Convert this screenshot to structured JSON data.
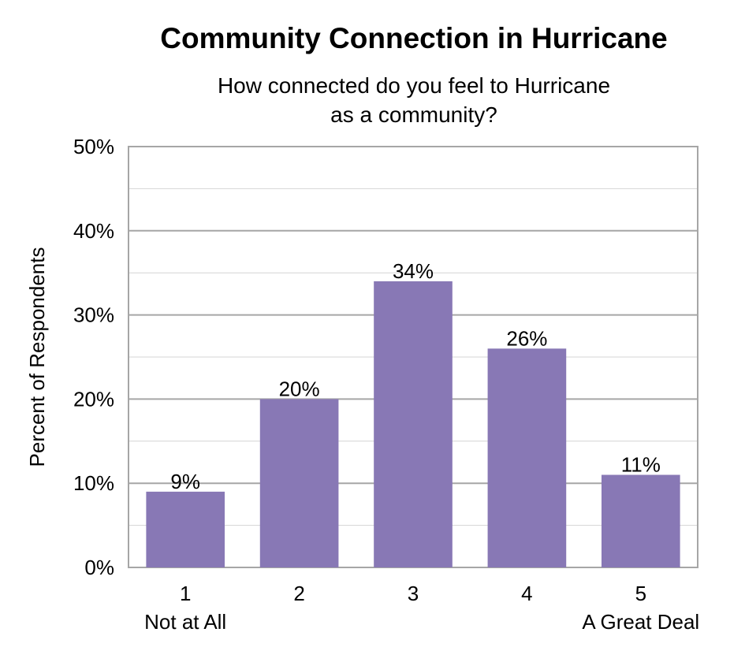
{
  "chart_data": {
    "type": "bar",
    "title": "Community Connection in Hurricane",
    "subtitle_lines": [
      "How connected do you feel to Hurricane",
      "as a community?"
    ],
    "ylabel": "Percent of Respondents",
    "xlabel": "",
    "categories": [
      "1",
      "2",
      "3",
      "4",
      "5"
    ],
    "category_sublabels": [
      "Not at All",
      "",
      "",
      "",
      "A Great Deal"
    ],
    "values": [
      9,
      20,
      34,
      26,
      11
    ],
    "data_labels": [
      "9%",
      "20%",
      "34%",
      "26%",
      "11%"
    ],
    "ylim": [
      0,
      50
    ],
    "yticks": [
      0,
      10,
      20,
      30,
      40,
      50
    ],
    "ytick_labels": [
      "0%",
      "10%",
      "20%",
      "30%",
      "40%",
      "50%"
    ],
    "grid": true,
    "bar_color": "#8878b5"
  }
}
